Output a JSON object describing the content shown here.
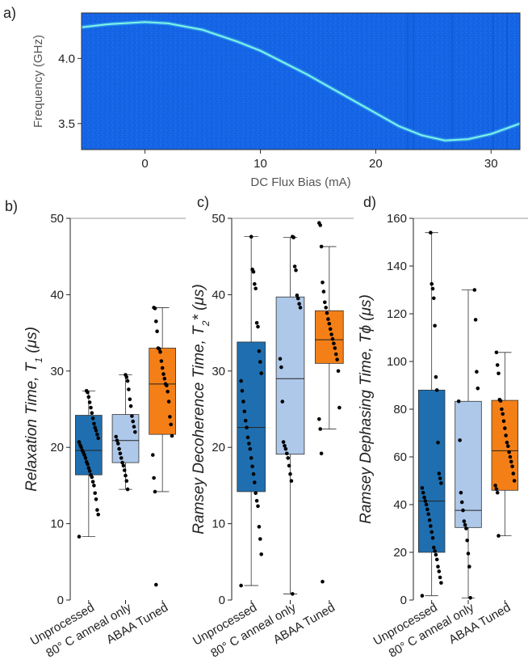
{
  "panels": {
    "a": "a)",
    "b": "b)",
    "c": "c)",
    "d": "d)"
  },
  "colors": {
    "unprocessed": "#1f6fb0",
    "anneal": "#aec8ea",
    "abaa": "#f57f17",
    "spectro_bg": "#1565e6",
    "spectro_curve": "#7ff5e6"
  },
  "chart_data": [
    {
      "type": "heatmap",
      "panel": "a)",
      "xlabel": "DC Flux Bias (mA)",
      "ylabel": "Frequency (GHz)",
      "xlim": [
        -5.5,
        32.5
      ],
      "ylim": [
        3.3,
        4.35
      ],
      "xticks": [
        0,
        10,
        20,
        30
      ],
      "yticks": [
        3.5,
        4.0
      ],
      "curve": {
        "x": [
          -5.5,
          -3,
          0,
          2,
          5,
          8,
          10,
          12,
          14,
          16,
          18,
          20,
          22,
          24,
          26,
          28,
          30,
          32.5
        ],
        "y": [
          4.24,
          4.265,
          4.28,
          4.27,
          4.22,
          4.13,
          4.06,
          3.97,
          3.88,
          3.78,
          3.68,
          3.58,
          3.48,
          3.41,
          3.37,
          3.38,
          3.42,
          3.5
        ]
      }
    },
    {
      "type": "box",
      "panel": "b)",
      "ylabel": "Relaxation Time, T1 (μs)",
      "ylim": [
        0,
        50
      ],
      "yticks": [
        0,
        10,
        20,
        30,
        40,
        50
      ],
      "categories": [
        "Unprocessed",
        "80° C anneal only",
        "ABAA Tuned"
      ],
      "boxes": [
        {
          "whislo": 8.3,
          "q1": 16.4,
          "med": 19.6,
          "q3": 24.2,
          "whishi": 27.4
        },
        {
          "whislo": 14.5,
          "q1": 18.0,
          "med": 20.9,
          "q3": 24.3,
          "whishi": 29.5
        },
        {
          "whislo": 14.2,
          "q1": 21.7,
          "med": 28.3,
          "q3": 33.0,
          "whishi": 38.3
        }
      ],
      "points": [
        [
          8.3,
          11.2,
          11.8,
          13.2,
          14.0,
          15.0,
          15.5,
          16.1,
          16.4,
          16.9,
          17.3,
          17.8,
          18.1,
          18.6,
          19.0,
          19.3,
          19.6,
          20.0,
          20.3,
          20.7,
          21.2,
          21.7,
          22.2,
          22.6,
          23.1,
          23.8,
          24.5,
          25.2,
          25.9,
          26.6,
          27.2,
          27.4
        ],
        [
          14.5,
          15.6,
          16.3,
          17.0,
          17.6,
          18.0,
          18.6,
          19.2,
          19.8,
          20.5,
          20.9,
          21.4,
          22.0,
          22.7,
          23.4,
          24.1,
          25.4,
          26.3,
          27.6,
          28.7,
          29.2,
          29.5
        ],
        [
          2.0,
          14.2,
          16.0,
          19.0,
          21.5,
          23.0,
          24.0,
          26.0,
          27.3,
          28.1,
          28.3,
          29.0,
          29.6,
          30.4,
          31.3,
          32.5,
          32.9,
          33.0,
          35.2,
          36.5,
          38.2,
          38.3
        ]
      ]
    },
    {
      "type": "box",
      "panel": "c)",
      "ylabel": "Ramsey Decoherence Time, T2* (μs)",
      "ylim": [
        0,
        50
      ],
      "yticks": [
        0,
        10,
        20,
        30,
        40,
        50
      ],
      "categories": [
        "Unprocessed",
        "80° C anneal only",
        "ABAA Tuned"
      ],
      "boxes": [
        {
          "whislo": 1.9,
          "q1": 14.2,
          "med": 22.6,
          "q3": 33.8,
          "whishi": 47.6
        },
        {
          "whislo": 0.8,
          "q1": 19.1,
          "med": 29.0,
          "q3": 39.7,
          "whishi": 47.5
        },
        {
          "whislo": 22.4,
          "q1": 31.0,
          "med": 34.1,
          "q3": 37.9,
          "whishi": 46.3
        }
      ],
      "points": [
        [
          1.9,
          6.0,
          8.0,
          9.6,
          12.3,
          13.0,
          14.0,
          15.4,
          16.5,
          17.5,
          18.6,
          19.8,
          20.5,
          21.3,
          22.6,
          23.5,
          24.7,
          26.0,
          27.4,
          28.7,
          29.7,
          31.2,
          32.6,
          35.8,
          36.3,
          40.8,
          41.4,
          43.0,
          43.3,
          47.6
        ],
        [
          0.8,
          15.6,
          16.5,
          17.6,
          18.6,
          19.2,
          19.8,
          20.2,
          20.7,
          26.0,
          30.5,
          31.6,
          38.3,
          38.8,
          39.5,
          39.9,
          43.2,
          43.7,
          47.5,
          47.6
        ],
        [
          2.4,
          19.2,
          22.4,
          23.7,
          25.2,
          30.0,
          31.5,
          32.2,
          33.0,
          33.6,
          34.2,
          34.8,
          35.5,
          36.2,
          36.8,
          37.6,
          38.3,
          39.0,
          40.4,
          41.6,
          46.3,
          49.1,
          49.4
        ]
      ]
    },
    {
      "type": "box",
      "panel": "d)",
      "ylabel": "Ramsey Dephasing Time, Tϕ (μs)",
      "ylim": [
        0,
        160
      ],
      "yticks": [
        0,
        20,
        40,
        60,
        80,
        100,
        120,
        140,
        160
      ],
      "categories": [
        "Unprocessed",
        "80° C anneal only",
        "ABAA Tuned"
      ],
      "boxes": [
        {
          "whislo": 1.8,
          "q1": 20.0,
          "med": 41.5,
          "q3": 88.0,
          "whishi": 154.0
        },
        {
          "whislo": 0.9,
          "q1": 30.4,
          "med": 37.6,
          "q3": 83.3,
          "whishi": 130.0
        },
        {
          "whislo": 26.9,
          "q1": 46.0,
          "med": 62.6,
          "q3": 83.7,
          "whishi": 103.8
        }
      ],
      "points": [
        [
          1.8,
          7.2,
          9.5,
          12.0,
          14.0,
          17.0,
          19.0,
          20.5,
          22.0,
          26.0,
          28.5,
          31.0,
          33.5,
          36.0,
          38.0,
          40.0,
          41.5,
          43.0,
          45.0,
          47.0,
          49.0,
          51.0,
          53.0,
          66.0,
          88.0,
          93.5,
          115.0,
          126.5,
          130.5,
          132.5,
          154.0
        ],
        [
          0.9,
          14.0,
          19.5,
          25.0,
          30.0,
          31.5,
          33.0,
          37.6,
          41.0,
          45.0,
          67.0,
          83.3,
          88.7,
          95.7,
          117.5,
          130.0
        ],
        [
          26.9,
          45.0,
          46.5,
          48.0,
          50.0,
          53.0,
          56.0,
          58.0,
          60.0,
          62.0,
          64.5,
          66.0,
          69.0,
          72.0,
          75.0,
          78.0,
          80.0,
          83.5,
          84.0,
          95.0,
          98.5,
          103.8
        ]
      ]
    }
  ]
}
